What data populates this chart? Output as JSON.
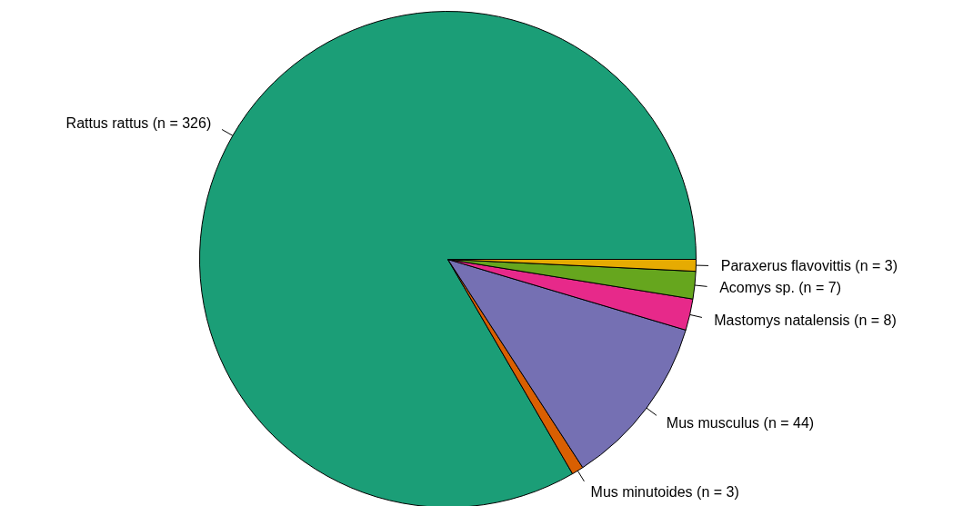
{
  "chart_data": {
    "type": "pie",
    "categories": [
      "Rattus rattus (n = 326)",
      "Mus minutoides (n = 3)",
      "Mus musculus (n = 44)",
      "Mastomys natalensis (n = 8)",
      "Acomys sp. (n = 7)",
      "Paraxerus flavovittis (n = 3)"
    ],
    "values": [
      326,
      3,
      44,
      8,
      7,
      3
    ],
    "colors": [
      "#1b9e77",
      "#d95f02",
      "#7570b3",
      "#e7298a",
      "#66a61e",
      "#e6ab02"
    ]
  }
}
